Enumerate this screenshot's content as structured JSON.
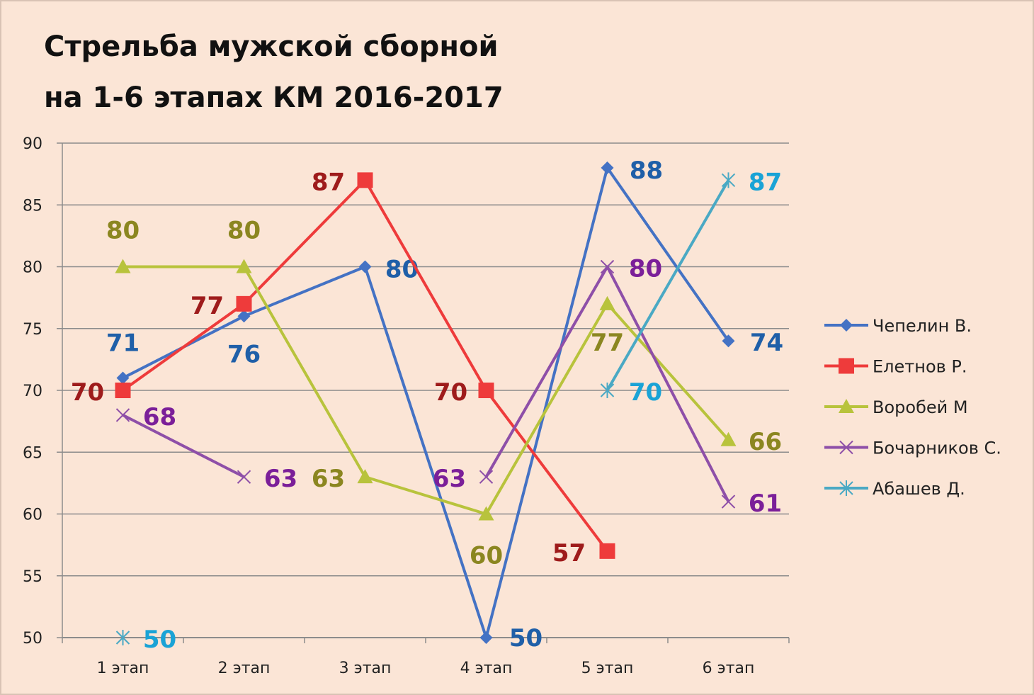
{
  "chart_data": {
    "type": "line",
    "title_lines": [
      "Стрельба мужской сборной",
      "на 1-6 этапах КМ 2016-2017"
    ],
    "categories": [
      "1 этап",
      "2 этап",
      "3 этап",
      "4 этап",
      "5 этап",
      "6 этап"
    ],
    "ylim": [
      50,
      90
    ],
    "ytick_step": 5,
    "grid": true,
    "legend_position": "right",
    "series": [
      {
        "name": "Чепелин В.",
        "marker": "diamond",
        "color": "#4472c4",
        "label_color": "#1f5fa8",
        "points": [
          {
            "x": 0,
            "y": 71,
            "label": "71"
          },
          {
            "x": 1,
            "y": 76,
            "label": "76"
          },
          {
            "x": 2,
            "y": 80,
            "label": "80"
          },
          {
            "x": 3,
            "y": 50,
            "label": "50"
          },
          {
            "x": 4,
            "y": 88,
            "label": "88"
          },
          {
            "x": 5,
            "y": 74,
            "label": "74"
          }
        ]
      },
      {
        "name": "Елетнов Р.",
        "marker": "square",
        "color": "#ee3b3b",
        "label_color": "#9e1b1b",
        "points": [
          {
            "x": 0,
            "y": 70,
            "label": "70"
          },
          {
            "x": 1,
            "y": 77,
            "label": "77"
          },
          {
            "x": 2,
            "y": 87,
            "label": "87"
          },
          {
            "x": 3,
            "y": 70,
            "label": "70"
          },
          {
            "x": 4,
            "y": 57,
            "label": "57"
          }
        ]
      },
      {
        "name": "Воробей М",
        "marker": "triangle",
        "color": "#b8c33c",
        "label_color": "#8b8620",
        "points": [
          {
            "x": 0,
            "y": 80,
            "label": "80"
          },
          {
            "x": 1,
            "y": 80,
            "label": "80"
          },
          {
            "x": 2,
            "y": 63,
            "label": "63"
          },
          {
            "x": 3,
            "y": 60,
            "label": "60"
          },
          {
            "x": 4,
            "y": 77,
            "label": "77"
          },
          {
            "x": 5,
            "y": 66,
            "label": "66"
          }
        ]
      },
      {
        "name": "Бочарников С.",
        "marker": "x",
        "color": "#8e4fa8",
        "label_color": "#7b1f99",
        "segments": [
          [
            0,
            1
          ],
          [
            3,
            4,
            5
          ]
        ],
        "points": [
          {
            "x": 0,
            "y": 68,
            "label": "68"
          },
          {
            "x": 1,
            "y": 63,
            "label": "63"
          },
          {
            "x": 3,
            "y": 63,
            "label": "63"
          },
          {
            "x": 4,
            "y": 80,
            "label": "80"
          },
          {
            "x": 5,
            "y": 61,
            "label": "61"
          }
        ]
      },
      {
        "name": "Абашев Д.",
        "marker": "star",
        "color": "#4aa9c4",
        "label_color": "#1aa3d6",
        "segments": [
          [
            4,
            5
          ]
        ],
        "points": [
          {
            "x": 0,
            "y": 50,
            "label": "50"
          },
          {
            "x": 4,
            "y": 70,
            "label": "70"
          },
          {
            "x": 5,
            "y": 87,
            "label": "87"
          }
        ]
      }
    ]
  }
}
